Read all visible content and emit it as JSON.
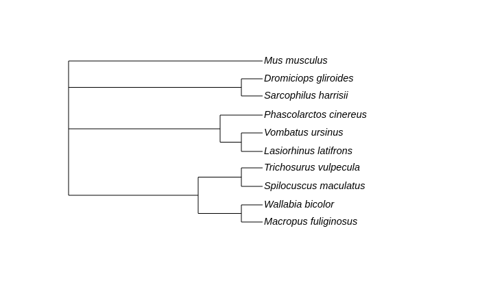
{
  "tree": {
    "title": "",
    "root": {
      "children": [
        {
          "name": "Mus musculus"
        },
        {
          "children": [
            {
              "name": "Dromiciops gliroides"
            },
            {
              "name": "Sarcophilus harrisii"
            }
          ]
        },
        {
          "children": [
            {
              "name": "Phascolarctos cinereus"
            },
            {
              "children": [
                {
                  "name": "Vombatus ursinus"
                },
                {
                  "name": "Lasiorhinus latifrons"
                }
              ]
            }
          ]
        },
        {
          "children": [
            {
              "children": [
                {
                  "name": "Trichosurus vulpecula"
                },
                {
                  "name": "Spilocuscus maculatus"
                }
              ]
            },
            {
              "children": [
                {
                  "name": "Wallabia bicolor"
                },
                {
                  "name": "Macropus fuliginosus"
                }
              ]
            }
          ]
        }
      ]
    }
  }
}
